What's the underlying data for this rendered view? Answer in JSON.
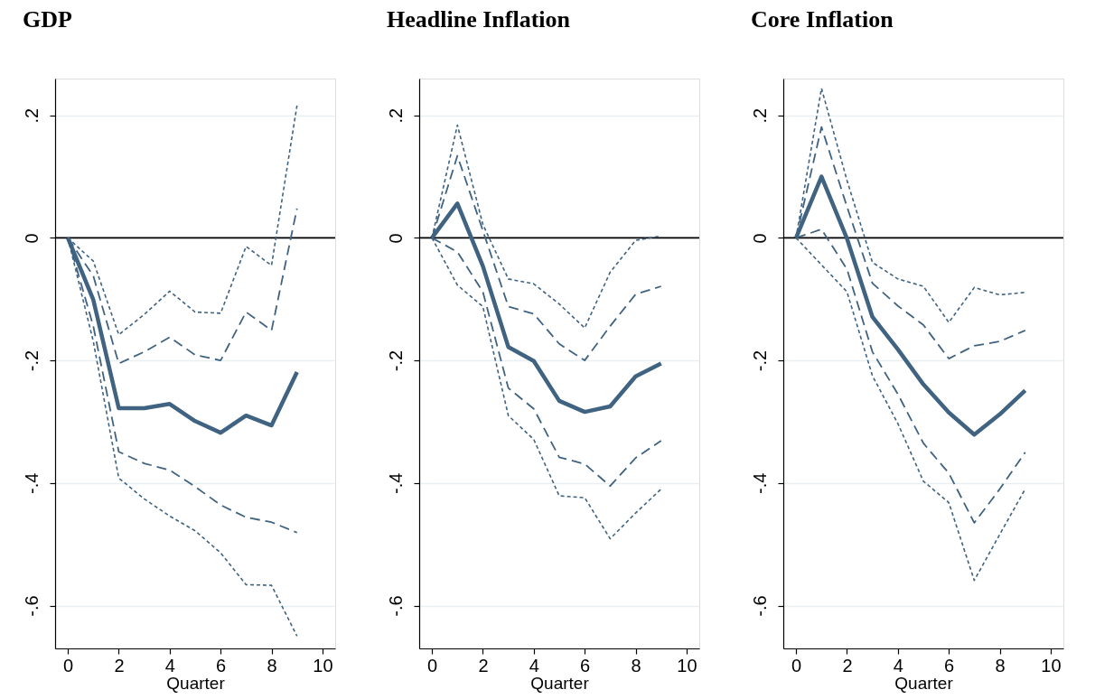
{
  "chart_data": [
    {
      "type": "line",
      "title": "GDP",
      "xlabel": "Quarter",
      "x": [
        0,
        1,
        2,
        3,
        4,
        5,
        6,
        7,
        8,
        9
      ],
      "xlim": [
        -0.5,
        10.5
      ],
      "xticks": [
        0,
        2,
        4,
        6,
        8,
        10
      ],
      "ylim": [
        -0.67,
        0.26
      ],
      "yticks": [
        {
          "value": 0.2,
          "label": ".2"
        },
        {
          "value": 0,
          "label": "0"
        },
        {
          "value": -0.2,
          "label": "-.2"
        },
        {
          "value": -0.4,
          "label": "-.4"
        },
        {
          "value": -0.6,
          "label": "-.6"
        }
      ],
      "grid": "y",
      "ref_lines": [
        {
          "axis": "y",
          "value": 0,
          "color": "#000000"
        }
      ],
      "series": [
        {
          "color": "#3f6381",
          "line_style": "dotted",
          "values": [
            0,
            -0.038,
            -0.158,
            -0.125,
            -0.087,
            -0.121,
            -0.123,
            -0.014,
            -0.045,
            0.216
          ]
        },
        {
          "color": "#3f6381",
          "line_style": "dashed",
          "values": [
            0,
            -0.062,
            -0.205,
            -0.186,
            -0.162,
            -0.191,
            -0.2,
            -0.121,
            -0.151,
            0.048
          ]
        },
        {
          "color": "#3f6381",
          "line_style": "solid",
          "values": [
            0,
            -0.101,
            -0.278,
            -0.278,
            -0.271,
            -0.299,
            -0.318,
            -0.29,
            -0.306,
            -0.219
          ]
        },
        {
          "color": "#3f6381",
          "line_style": "dashed",
          "values": [
            0,
            -0.144,
            -0.349,
            -0.368,
            -0.379,
            -0.406,
            -0.436,
            -0.456,
            -0.464,
            -0.481
          ]
        },
        {
          "color": "#3f6381",
          "line_style": "dotted",
          "values": [
            0,
            -0.169,
            -0.392,
            -0.426,
            -0.454,
            -0.478,
            -0.514,
            -0.566,
            -0.567,
            -0.65
          ]
        }
      ]
    },
    {
      "type": "line",
      "title": "Headline Inflation",
      "xlabel": "Quarter",
      "x": [
        0,
        1,
        2,
        3,
        4,
        5,
        6,
        7,
        8,
        9
      ],
      "xlim": [
        -0.5,
        10.5
      ],
      "xticks": [
        0,
        2,
        4,
        6,
        8,
        10
      ],
      "ylim": [
        -0.67,
        0.26
      ],
      "yticks": [
        {
          "value": 0.2,
          "label": ".2"
        },
        {
          "value": 0,
          "label": "0"
        },
        {
          "value": -0.2,
          "label": "-.2"
        },
        {
          "value": -0.4,
          "label": "-.4"
        },
        {
          "value": -0.6,
          "label": "-.6"
        }
      ],
      "grid": "y",
      "ref_lines": [
        {
          "axis": "y",
          "value": 0,
          "color": "#000000"
        }
      ],
      "series": [
        {
          "color": "#3f6381",
          "line_style": "dotted",
          "values": [
            0,
            0.184,
            0.022,
            -0.067,
            -0.075,
            -0.108,
            -0.147,
            -0.056,
            -0.004,
            0.003
          ]
        },
        {
          "color": "#3f6381",
          "line_style": "dashed",
          "values": [
            0,
            0.134,
            0.012,
            -0.112,
            -0.124,
            -0.173,
            -0.2,
            -0.144,
            -0.092,
            -0.079
          ]
        },
        {
          "color": "#3f6381",
          "line_style": "solid",
          "values": [
            0,
            0.056,
            -0.046,
            -0.178,
            -0.201,
            -0.266,
            -0.284,
            -0.275,
            -0.226,
            -0.205
          ]
        },
        {
          "color": "#3f6381",
          "line_style": "dashed",
          "values": [
            0,
            -0.023,
            -0.088,
            -0.245,
            -0.279,
            -0.358,
            -0.369,
            -0.405,
            -0.359,
            -0.331
          ]
        },
        {
          "color": "#3f6381",
          "line_style": "dotted",
          "values": [
            0,
            -0.077,
            -0.112,
            -0.29,
            -0.329,
            -0.421,
            -0.424,
            -0.491,
            -0.449,
            -0.41
          ]
        }
      ]
    },
    {
      "type": "line",
      "title": "Core Inflation",
      "xlabel": "Quarter",
      "x": [
        0,
        1,
        2,
        3,
        4,
        5,
        6,
        7,
        8,
        9
      ],
      "xlim": [
        -0.5,
        10.5
      ],
      "xticks": [
        0,
        2,
        4,
        6,
        8,
        10
      ],
      "ylim": [
        -0.67,
        0.26
      ],
      "yticks": [
        {
          "value": 0.2,
          "label": ".2"
        },
        {
          "value": 0,
          "label": "0"
        },
        {
          "value": -0.2,
          "label": "-.2"
        },
        {
          "value": -0.4,
          "label": "-.4"
        },
        {
          "value": -0.6,
          "label": "-.6"
        }
      ],
      "grid": "y",
      "ref_lines": [
        {
          "axis": "y",
          "value": 0,
          "color": "#000000"
        }
      ],
      "series": [
        {
          "color": "#3f6381",
          "line_style": "dotted",
          "values": [
            0,
            0.244,
            0.094,
            -0.04,
            -0.067,
            -0.079,
            -0.138,
            -0.081,
            -0.093,
            -0.089
          ]
        },
        {
          "color": "#3f6381",
          "line_style": "dashed",
          "values": [
            0,
            0.181,
            0.051,
            -0.074,
            -0.111,
            -0.142,
            -0.197,
            -0.176,
            -0.169,
            -0.151
          ]
        },
        {
          "color": "#3f6381",
          "line_style": "solid",
          "values": [
            0,
            0.1,
            -0.001,
            -0.129,
            -0.182,
            -0.239,
            -0.285,
            -0.321,
            -0.288,
            -0.249
          ]
        },
        {
          "color": "#3f6381",
          "line_style": "dashed",
          "values": [
            0,
            0.014,
            -0.051,
            -0.186,
            -0.255,
            -0.335,
            -0.384,
            -0.465,
            -0.41,
            -0.35
          ]
        },
        {
          "color": "#3f6381",
          "line_style": "dotted",
          "values": [
            0,
            -0.044,
            -0.088,
            -0.225,
            -0.303,
            -0.397,
            -0.432,
            -0.559,
            -0.484,
            -0.41
          ]
        }
      ]
    }
  ]
}
